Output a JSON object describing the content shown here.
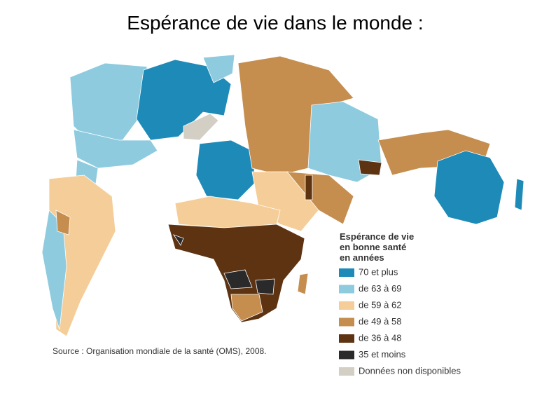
{
  "title": "Espérance de vie dans le monde :",
  "legend": {
    "title": [
      "Espérance de vie",
      "en bonne santé",
      "en années"
    ],
    "items": [
      {
        "label": "70 et plus",
        "color": "#1e8ab8"
      },
      {
        "label": "de 63 à 69",
        "color": "#8ecbdf"
      },
      {
        "label": "de 59 à 62",
        "color": "#f5cd98"
      },
      {
        "label": "de 49 à 58",
        "color": "#c58d4e"
      },
      {
        "label": "de 36 à 48",
        "color": "#5e3312"
      },
      {
        "label": "35 et moins",
        "color": "#2a2a2a"
      },
      {
        "label": "Données non disponibles",
        "color": "#d3cfc4"
      }
    ]
  },
  "source": "Source : Organisation mondiale de la santé (OMS), 2008."
}
